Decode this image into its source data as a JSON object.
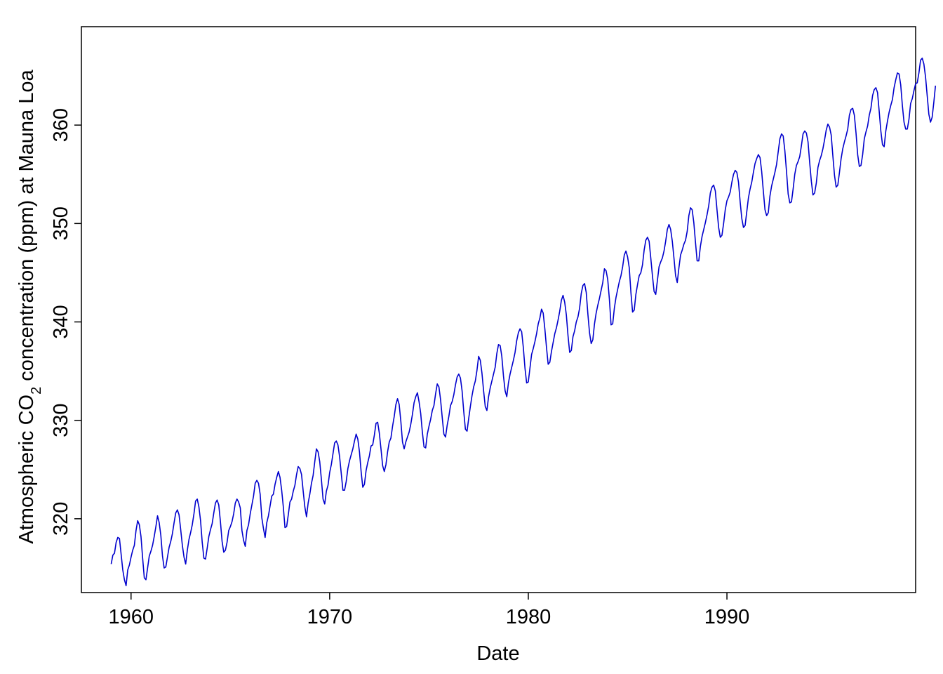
{
  "chart_data": {
    "type": "line",
    "title": "",
    "xlabel": "Date",
    "ylabel_parts": {
      "before": "Atmospheric CO",
      "subscript": "2",
      "after": " concentration (ppm) at Mauna Loa"
    },
    "xlim": [
      1957.5,
      1999.5
    ],
    "ylim": [
      312.5,
      370.0
    ],
    "x_ticks": [
      1960,
      1970,
      1980,
      1990
    ],
    "y_ticks": [
      320,
      330,
      340,
      350,
      360
    ],
    "grid": false,
    "legend": "none",
    "colors": {
      "line": "#0000cd",
      "axes": "#000000"
    },
    "series": [
      {
        "x_start": 1959.0,
        "x_step": 0.08333,
        "values": [
          315.4,
          316.3,
          316.5,
          317.6,
          318.1,
          318.0,
          316.4,
          314.8,
          313.8,
          313.2,
          314.8,
          315.3,
          316.1,
          316.8,
          317.3,
          318.8,
          319.8,
          319.4,
          318.2,
          316.0,
          314.0,
          313.8,
          315.0,
          316.2,
          316.7,
          317.3,
          318.2,
          319.2,
          320.3,
          319.6,
          318.3,
          316.2,
          315.0,
          315.1,
          316.1,
          317.1,
          317.7,
          318.5,
          319.6,
          320.6,
          320.9,
          320.4,
          318.9,
          317.3,
          316.1,
          315.4,
          316.8,
          317.9,
          318.6,
          319.4,
          320.5,
          321.8,
          322.0,
          321.2,
          319.8,
          317.6,
          316.0,
          315.9,
          317.0,
          318.2,
          318.9,
          319.5,
          320.6,
          321.6,
          321.9,
          321.4,
          319.7,
          317.7,
          316.6,
          316.8,
          317.6,
          318.8,
          319.2,
          319.7,
          320.5,
          321.6,
          322.0,
          321.7,
          321.1,
          318.8,
          317.8,
          317.2,
          318.8,
          319.4,
          320.5,
          321.4,
          322.3,
          323.6,
          323.9,
          323.6,
          322.5,
          320.1,
          319.0,
          318.1,
          319.6,
          320.3,
          321.3,
          322.3,
          322.5,
          323.5,
          324.2,
          324.8,
          324.2,
          322.9,
          321.2,
          319.1,
          319.2,
          320.4,
          321.7,
          322.0,
          322.8,
          323.4,
          324.5,
          325.3,
          325.1,
          324.5,
          322.8,
          321.2,
          320.2,
          321.6,
          322.5,
          323.6,
          324.4,
          325.8,
          327.1,
          326.8,
          325.8,
          324.0,
          322.0,
          321.5,
          322.8,
          323.4,
          324.7,
          325.5,
          326.6,
          327.7,
          327.9,
          327.5,
          326.3,
          324.6,
          322.9,
          322.9,
          323.8,
          325.1,
          325.9,
          326.5,
          327.1,
          327.9,
          328.6,
          328.1,
          326.8,
          324.8,
          323.2,
          323.5,
          324.9,
          325.7,
          326.4,
          327.4,
          327.5,
          328.5,
          329.7,
          329.8,
          328.7,
          327.1,
          325.4,
          324.8,
          325.5,
          326.8,
          327.8,
          328.2,
          329.4,
          330.4,
          331.6,
          332.2,
          331.6,
          329.9,
          327.8,
          327.1,
          327.8,
          328.3,
          328.8,
          329.6,
          330.6,
          331.8,
          332.4,
          332.8,
          331.9,
          330.7,
          328.8,
          327.3,
          327.2,
          328.6,
          329.4,
          330.1,
          331.0,
          331.5,
          332.7,
          333.7,
          333.4,
          332.1,
          330.3,
          328.6,
          328.3,
          329.5,
          330.4,
          331.5,
          331.9,
          332.6,
          333.6,
          334.4,
          334.7,
          334.3,
          333.0,
          330.9,
          329.1,
          328.9,
          330.2,
          331.4,
          332.5,
          333.4,
          334.0,
          335.1,
          336.5,
          336.1,
          334.8,
          333.0,
          331.4,
          331.0,
          332.4,
          333.3,
          334.0,
          334.7,
          335.4,
          336.8,
          337.7,
          337.6,
          336.5,
          334.5,
          333.0,
          332.4,
          333.8,
          334.7,
          335.4,
          336.1,
          336.9,
          338.1,
          338.9,
          339.3,
          339.0,
          337.4,
          335.3,
          333.8,
          333.9,
          335.3,
          336.7,
          337.3,
          338.0,
          338.8,
          339.8,
          340.4,
          341.3,
          340.9,
          339.3,
          337.4,
          335.7,
          335.9,
          337.0,
          337.9,
          338.8,
          339.4,
          340.2,
          341.1,
          342.2,
          342.7,
          342.0,
          340.7,
          338.6,
          336.9,
          337.1,
          338.5,
          339.1,
          340.0,
          340.5,
          341.4,
          342.9,
          343.7,
          343.9,
          343.0,
          340.8,
          338.9,
          337.8,
          338.2,
          339.8,
          340.9,
          341.7,
          342.4,
          343.2,
          344.0,
          345.4,
          345.2,
          344.3,
          342.3,
          339.7,
          339.8,
          341.4,
          342.5,
          343.3,
          344.1,
          344.7,
          345.6,
          346.8,
          347.2,
          346.6,
          345.5,
          343.0,
          341.0,
          341.2,
          342.8,
          343.8,
          344.7,
          345.0,
          345.8,
          347.3,
          348.3,
          348.6,
          348.2,
          346.5,
          344.7,
          343.1,
          342.8,
          344.2,
          345.6,
          346.1,
          346.5,
          347.2,
          348.2,
          349.4,
          349.9,
          349.4,
          348.2,
          346.5,
          344.7,
          344.0,
          345.5,
          346.8,
          347.3,
          347.9,
          348.3,
          349.2,
          350.8,
          351.6,
          351.4,
          350.1,
          348.1,
          346.2,
          346.2,
          347.7,
          348.7,
          349.4,
          350.1,
          350.9,
          351.8,
          353.1,
          353.7,
          353.9,
          353.3,
          351.4,
          349.6,
          348.6,
          348.8,
          350.0,
          351.4,
          352.3,
          352.7,
          353.2,
          354.2,
          355.0,
          355.4,
          355.2,
          354.2,
          352.2,
          350.5,
          349.6,
          349.8,
          351.2,
          352.6,
          353.5,
          354.2,
          355.2,
          356.1,
          356.6,
          357.0,
          356.7,
          355.3,
          353.3,
          351.4,
          350.8,
          351.1,
          352.8,
          353.8,
          354.5,
          355.2,
          356.0,
          357.3,
          358.6,
          359.1,
          358.9,
          357.4,
          355.3,
          353.0,
          352.1,
          352.2,
          353.5,
          355.0,
          355.9,
          356.3,
          356.8,
          357.9,
          359.1,
          359.4,
          359.2,
          358.3,
          356.2,
          354.3,
          352.9,
          353.1,
          354.1,
          355.7,
          356.4,
          356.9,
          357.6,
          358.5,
          359.5,
          360.1,
          359.8,
          359.0,
          356.9,
          354.9,
          353.7,
          353.9,
          355.2,
          356.6,
          357.6,
          358.3,
          358.9,
          359.6,
          361.0,
          361.6,
          361.7,
          361.0,
          359.2,
          357.0,
          355.8,
          355.9,
          357.0,
          358.6,
          359.3,
          359.9,
          361.0,
          361.7,
          363.0,
          363.6,
          363.8,
          363.3,
          361.4,
          359.4,
          358.0,
          357.8,
          359.4,
          360.4,
          361.3,
          362.0,
          362.6,
          363.8,
          364.6,
          365.3,
          365.2,
          364.1,
          362.0,
          360.3,
          359.6,
          359.6,
          360.6,
          362.2,
          362.7,
          363.5,
          364.2,
          364.3,
          365.3,
          366.6,
          366.8,
          366.2,
          364.9,
          363.0,
          361.1,
          360.3,
          360.8,
          362.3,
          364.0
        ]
      }
    ]
  }
}
